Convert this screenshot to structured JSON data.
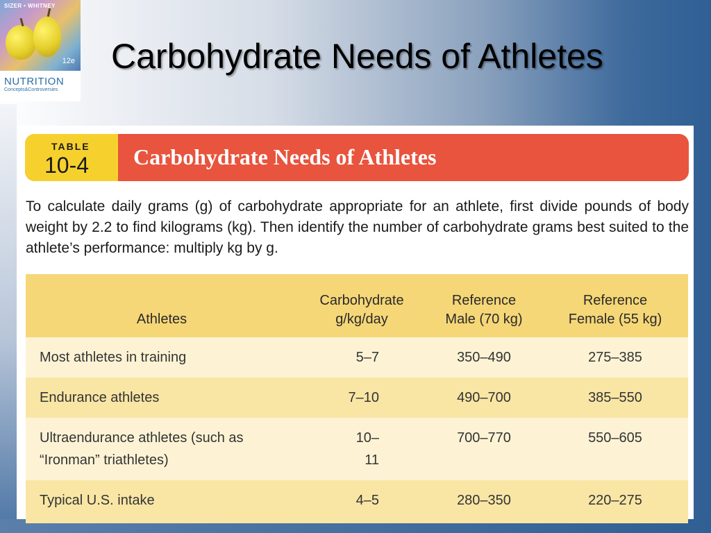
{
  "slide": {
    "title": "Carbohydrate Needs of Athletes"
  },
  "cover": {
    "authors": "SIZER • WHITNEY",
    "edition": "12e",
    "brand": "NUTRITION",
    "subtitle": "Concepts&Controversies"
  },
  "table_card": {
    "badge_word": "TABLE",
    "badge_number": "10-4",
    "banner_title": "Carbohydrate Needs of Athletes",
    "intro": "To calculate daily grams (g) of carbohydrate appropriate for an athlete, first divide pounds of body weight by 2.2 to find kilograms (kg). Then identify the number of carbohydrate grams best suited to the athlete’s performance: multiply kg by g.",
    "headers": {
      "athletes": "Athletes",
      "carb_line1": "Carbohydrate",
      "carb_line2": "g/kg/day",
      "male_line1": "Reference",
      "male_line2": "Male (70 kg)",
      "female_line1": "Reference",
      "female_line2": "Female (55 kg)"
    },
    "rows": [
      {
        "athletes": "Most athletes in training",
        "carb": "5–7",
        "male": "350–490",
        "female": "275–385"
      },
      {
        "athletes": "Endurance athletes",
        "carb": "7–10",
        "male": "490–700",
        "female": "385–550"
      },
      {
        "athletes_line1": "Ultraendurance athletes (such as",
        "athletes_line2": "“Ironman” triathletes)",
        "carb": "10–11",
        "male": "700–770",
        "female": "550–605"
      },
      {
        "athletes": "Typical U.S. intake",
        "carb": "4–5",
        "male": "280–350",
        "female": "220–275"
      }
    ]
  }
}
